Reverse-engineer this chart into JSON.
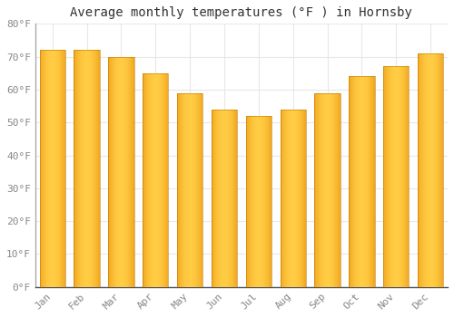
{
  "title": "Average monthly temperatures (°F ) in Hornsby",
  "months": [
    "Jan",
    "Feb",
    "Mar",
    "Apr",
    "May",
    "Jun",
    "Jul",
    "Aug",
    "Sep",
    "Oct",
    "Nov",
    "Dec"
  ],
  "values": [
    72,
    72,
    70,
    65,
    59,
    54,
    52,
    54,
    59,
    64,
    67,
    71
  ],
  "bar_color_center": "#FFCC44",
  "bar_color_edge": "#E8920A",
  "ylim": [
    0,
    80
  ],
  "yticks": [
    0,
    10,
    20,
    30,
    40,
    50,
    60,
    70,
    80
  ],
  "ytick_labels": [
    "0°F",
    "10°F",
    "20°F",
    "30°F",
    "40°F",
    "50°F",
    "60°F",
    "70°F",
    "80°F"
  ],
  "background_color": "#ffffff",
  "plot_bg_color": "#ffffff",
  "grid_color": "#e8e8e8",
  "title_fontsize": 10,
  "tick_fontsize": 8,
  "font_family": "monospace"
}
